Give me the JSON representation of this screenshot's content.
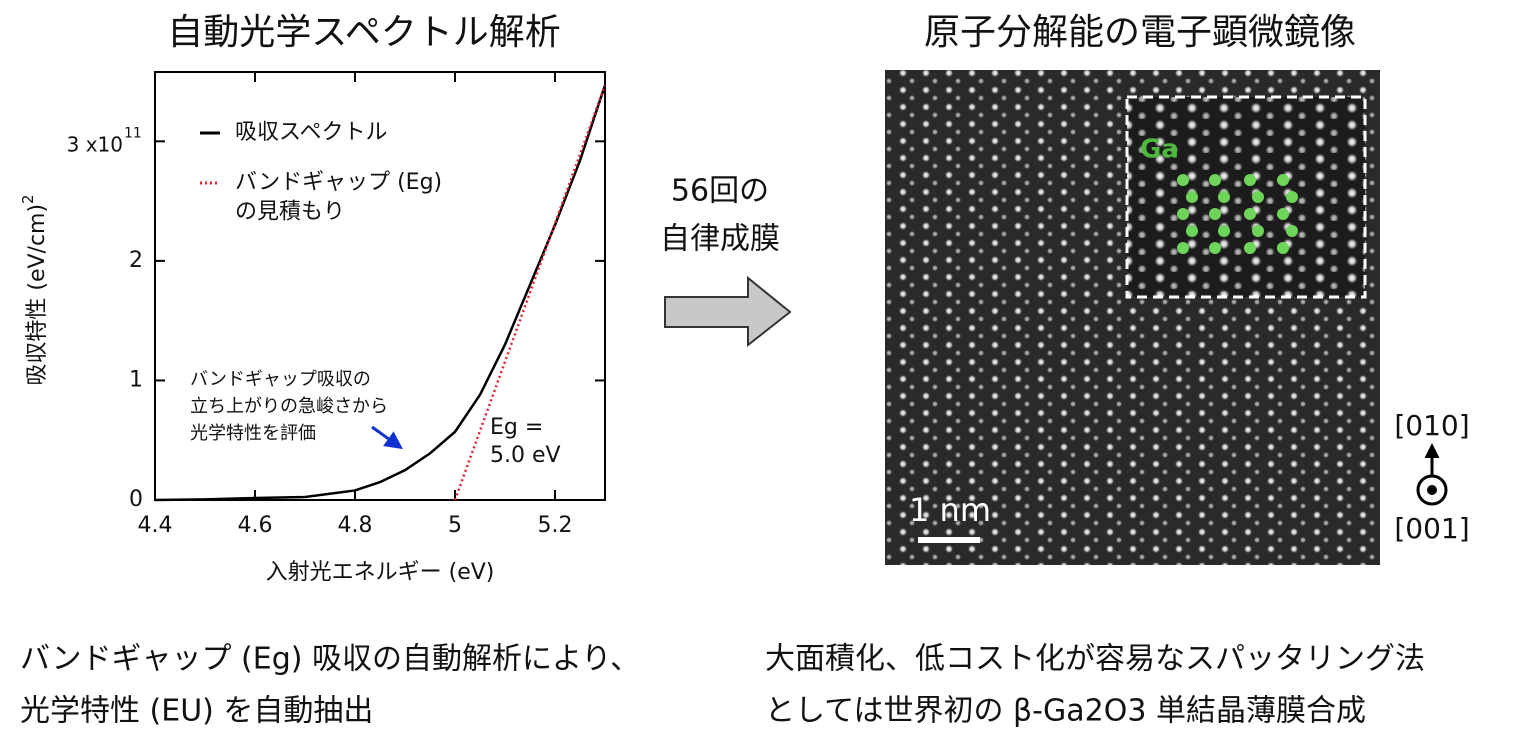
{
  "chart_data": {
    "type": "line",
    "title": "自動光学スペクトル解析",
    "xlabel": "入射光エネルギー (eV)",
    "ylabel": "吸収特性  (eV/cm)",
    "ylabel_sup": "2",
    "xlim": [
      4.4,
      5.3
    ],
    "ylim": [
      0,
      3.58
    ],
    "xticks": [
      4.4,
      4.6,
      4.8,
      5.0,
      5.2
    ],
    "yticks": [
      0,
      1,
      2,
      {
        "value": 3,
        "label": "3 x10",
        "sup": "11"
      }
    ],
    "series": [
      {
        "name": "吸収スペクトル",
        "color": "#000000",
        "style": "solid",
        "x": [
          4.4,
          4.5,
          4.6,
          4.7,
          4.8,
          4.85,
          4.9,
          4.95,
          5.0,
          5.05,
          5.1,
          5.15,
          5.2,
          5.25,
          5.3
        ],
        "values": [
          0,
          0.005,
          0.017,
          0.025,
          0.08,
          0.15,
          0.25,
          0.39,
          0.57,
          0.88,
          1.3,
          1.8,
          2.3,
          2.84,
          3.47
        ]
      },
      {
        "name": "バンドギャップ (Eg)\nの見積もり",
        "color": "#e0202a",
        "style": "dotted",
        "x": [
          5.0,
          5.3
        ],
        "values": [
          0,
          3.47
        ]
      }
    ],
    "annotations": [
      [
        "バンドギャップ吸収の",
        "立ち上がりの急峻さから",
        "光学特性を評価"
      ],
      [
        "Eg =",
        "5.0 eV"
      ]
    ]
  },
  "flow_label": [
    "56回の",
    "自律成膜"
  ],
  "image_panel": {
    "title": "原子分解能の電子顕微鏡像",
    "inset_label": "Ga",
    "scale_bar": "1 nm",
    "directions": [
      "[010]",
      "[001]"
    ]
  },
  "captions": {
    "left": [
      "バンドギャップ (Eg) 吸収の自動解析により、",
      "光学特性 (EU) を自動抽出"
    ],
    "right": [
      "大面積化、低コスト化が容易なスパッタリング法",
      "としては世界初の β-Ga2O3 単結晶薄膜合成"
    ]
  }
}
